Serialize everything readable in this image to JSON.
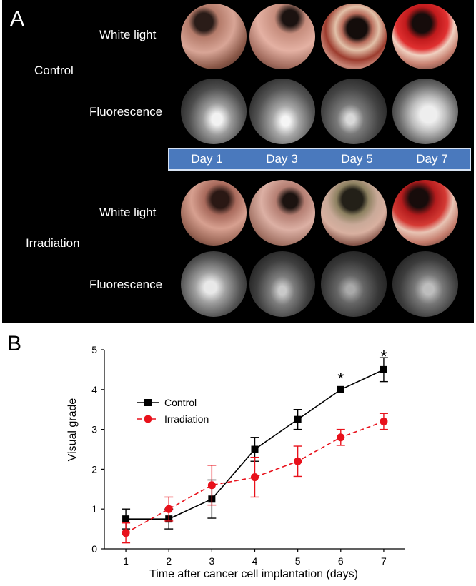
{
  "panel_a": {
    "letter": "A",
    "groups": [
      {
        "name": "Control",
        "rows": [
          "White light",
          "Fluorescence"
        ]
      },
      {
        "name": "Irradiation",
        "rows": [
          "White light",
          "Fluorescence"
        ]
      }
    ],
    "days": [
      "Day 1",
      "Day 3",
      "Day 5",
      "Day 7"
    ]
  },
  "chart_data": {
    "letter": "B",
    "type": "line",
    "xlabel": "Time after cancer cell implantation (days)",
    "ylabel": "Visual grade",
    "x": [
      1,
      2,
      3,
      4,
      5,
      6,
      7
    ],
    "xlim": [
      0.5,
      7.5
    ],
    "ylim": [
      0,
      5
    ],
    "xticks": [
      "1",
      "2",
      "3",
      "4",
      "5",
      "6",
      "7"
    ],
    "yticks": [
      "0",
      "1",
      "2",
      "3",
      "4",
      "5"
    ],
    "legend_position": "upper-left",
    "series": [
      {
        "name": "Control",
        "color": "#000000",
        "marker": "square",
        "dash": "solid",
        "values": [
          0.75,
          0.75,
          1.25,
          2.5,
          3.25,
          4.0,
          4.5
        ],
        "errors": [
          0.25,
          0.25,
          0.48,
          0.3,
          0.25,
          0.0,
          0.3
        ]
      },
      {
        "name": "Irradiation",
        "color": "#e8111b",
        "marker": "circle",
        "dash": "dashed",
        "values": [
          0.4,
          1.0,
          1.6,
          1.8,
          2.2,
          2.8,
          3.2
        ],
        "errors": [
          0.25,
          0.3,
          0.5,
          0.5,
          0.38,
          0.2,
          0.2
        ]
      }
    ],
    "annotations": [
      {
        "text": "*",
        "x": 6,
        "y": 4.35
      },
      {
        "text": "*",
        "x": 7,
        "y": 4.9
      }
    ]
  }
}
